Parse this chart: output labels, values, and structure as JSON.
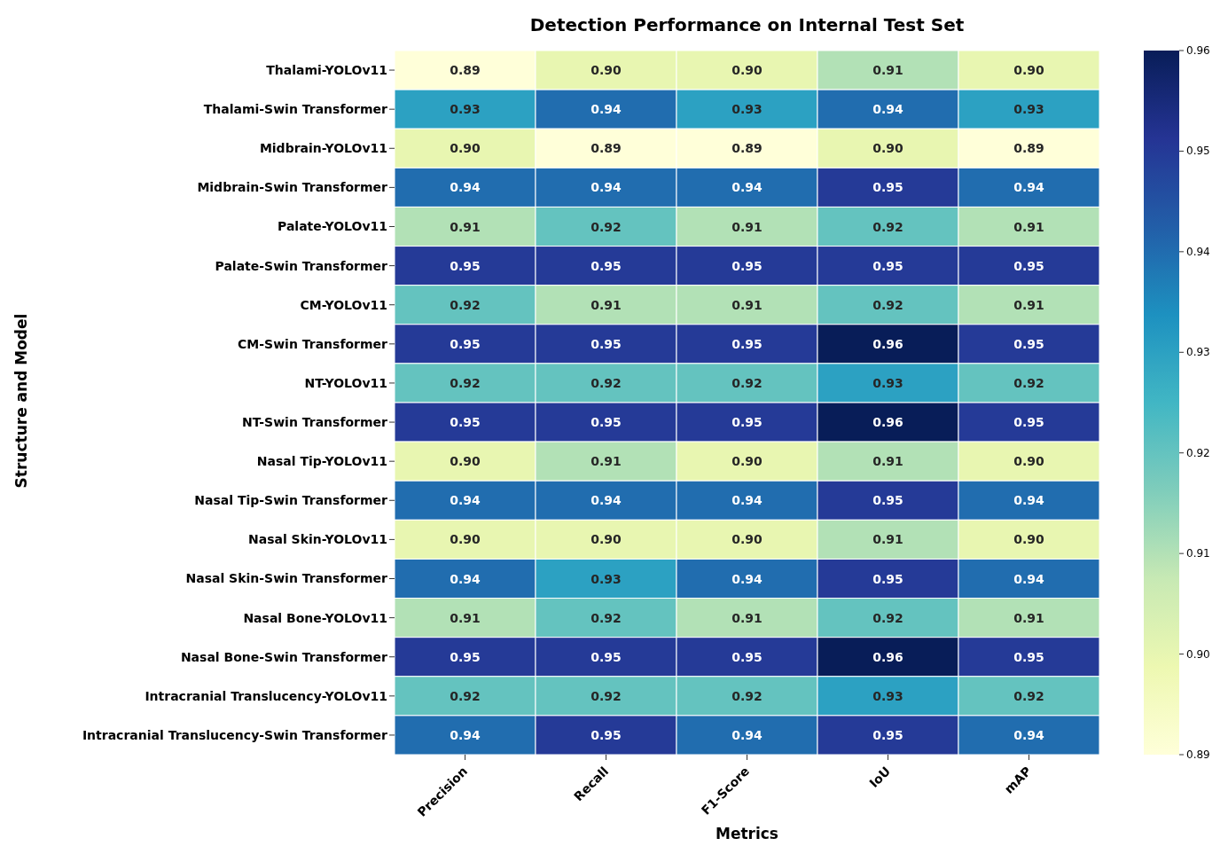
{
  "chart_data": {
    "type": "heatmap",
    "title": "Detection Performance on Internal Test Set",
    "xlabel": "Metrics",
    "ylabel": "Structure and Model",
    "categories": [
      "Precision",
      "Recall",
      "F1-Score",
      "IoU",
      "mAP"
    ],
    "y_categories": [
      "Thalami-YOLOv11",
      "Thalami-Swin Transformer",
      "Midbrain-YOLOv11",
      "Midbrain-Swin Transformer",
      "Palate-YOLOv11",
      "Palate-Swin Transformer",
      "CM-YOLOv11",
      "CM-Swin Transformer",
      "NT-YOLOv11",
      "NT-Swin Transformer",
      "Nasal Tip-YOLOv11",
      "Nasal Tip-Swin Transformer",
      "Nasal Skin-YOLOv11",
      "Nasal Skin-Swin Transformer",
      "Nasal Bone-YOLOv11",
      "Nasal Bone-Swin Transformer",
      "Intracranial Translucency-YOLOv11",
      "Intracranial Translucency-Swin Transformer"
    ],
    "cells": [
      [
        0.89,
        0.9,
        0.9,
        0.91,
        0.9
      ],
      [
        0.93,
        0.94,
        0.93,
        0.94,
        0.93
      ],
      [
        0.9,
        0.89,
        0.89,
        0.9,
        0.89
      ],
      [
        0.94,
        0.94,
        0.94,
        0.95,
        0.94
      ],
      [
        0.91,
        0.92,
        0.91,
        0.92,
        0.91
      ],
      [
        0.95,
        0.95,
        0.95,
        0.95,
        0.95
      ],
      [
        0.92,
        0.91,
        0.91,
        0.92,
        0.91
      ],
      [
        0.95,
        0.95,
        0.95,
        0.96,
        0.95
      ],
      [
        0.92,
        0.92,
        0.92,
        0.93,
        0.92
      ],
      [
        0.95,
        0.95,
        0.95,
        0.96,
        0.95
      ],
      [
        0.9,
        0.91,
        0.9,
        0.91,
        0.9
      ],
      [
        0.94,
        0.94,
        0.94,
        0.95,
        0.94
      ],
      [
        0.9,
        0.9,
        0.9,
        0.91,
        0.9
      ],
      [
        0.94,
        0.93,
        0.94,
        0.95,
        0.94
      ],
      [
        0.91,
        0.92,
        0.91,
        0.92,
        0.91
      ],
      [
        0.95,
        0.95,
        0.95,
        0.96,
        0.95
      ],
      [
        0.92,
        0.92,
        0.92,
        0.93,
        0.92
      ],
      [
        0.94,
        0.95,
        0.94,
        0.95,
        0.94
      ]
    ],
    "cell_labels": [
      [
        "0.89",
        "0.90",
        "0.90",
        "0.91",
        "0.90"
      ],
      [
        "0.93",
        "0.94",
        "0.93",
        "0.94",
        "0.93"
      ],
      [
        "0.90",
        "0.89",
        "0.89",
        "0.90",
        "0.89"
      ],
      [
        "0.94",
        "0.94",
        "0.94",
        "0.95",
        "0.94"
      ],
      [
        "0.91",
        "0.92",
        "0.91",
        "0.92",
        "0.91"
      ],
      [
        "0.95",
        "0.95",
        "0.95",
        "0.95",
        "0.95"
      ],
      [
        "0.92",
        "0.91",
        "0.91",
        "0.92",
        "0.91"
      ],
      [
        "0.95",
        "0.95",
        "0.95",
        "0.96",
        "0.95"
      ],
      [
        "0.92",
        "0.92",
        "0.92",
        "0.93",
        "0.92"
      ],
      [
        "0.95",
        "0.95",
        "0.95",
        "0.96",
        "0.95"
      ],
      [
        "0.90",
        "0.91",
        "0.90",
        "0.91",
        "0.90"
      ],
      [
        "0.94",
        "0.94",
        "0.94",
        "0.95",
        "0.94"
      ],
      [
        "0.90",
        "0.90",
        "0.90",
        "0.91",
        "0.90"
      ],
      [
        "0.94",
        "0.93",
        "0.94",
        "0.95",
        "0.94"
      ],
      [
        "0.91",
        "0.92",
        "0.91",
        "0.92",
        "0.91"
      ],
      [
        "0.95",
        "0.95",
        "0.95",
        "0.96",
        "0.95"
      ],
      [
        "0.92",
        "0.92",
        "0.92",
        "0.93",
        "0.92"
      ],
      [
        "0.94",
        "0.95",
        "0.94",
        "0.95",
        "0.94"
      ]
    ],
    "clim": [
      0.89,
      0.96
    ],
    "cticks": [
      0.89,
      {
        "value": 0.9,
        "label": "0.90"
      },
      0.91,
      0.92,
      0.93,
      0.94,
      0.95,
      0.96
    ]
  }
}
